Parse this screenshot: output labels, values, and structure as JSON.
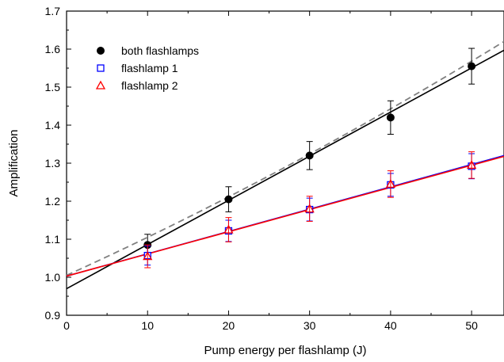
{
  "chart_data": {
    "type": "scatter",
    "xlabel": "Pump energy per flashlamp (J)",
    "ylabel": "Amplification",
    "xlim": [
      0,
      54
    ],
    "ylim": [
      0.9,
      1.7
    ],
    "x_ticks": [
      0,
      10,
      20,
      30,
      40,
      50
    ],
    "y_ticks": [
      0.9,
      1.0,
      1.1,
      1.2,
      1.3,
      1.4,
      1.5,
      1.6,
      1.7
    ],
    "x_tick_labels": [
      "0",
      "10",
      "20",
      "30",
      "40",
      "50"
    ],
    "y_tick_labels": [
      "0.9",
      "1.0",
      "1.1",
      "1.2",
      "1.3",
      "1.4",
      "1.5",
      "1.6",
      "1.7"
    ],
    "legend_position": "top-left",
    "series": [
      {
        "name": "both flashlamps",
        "marker": "filled-circle",
        "color": "#000000",
        "points": [
          {
            "x": 10,
            "y": 1.085,
            "err": 0.028
          },
          {
            "x": 20,
            "y": 1.205,
            "err": 0.033
          },
          {
            "x": 30,
            "y": 1.32,
            "err": 0.037
          },
          {
            "x": 40,
            "y": 1.42,
            "err": 0.044
          },
          {
            "x": 50,
            "y": 1.555,
            "err": 0.047
          }
        ]
      },
      {
        "name": "flashlamp 1",
        "marker": "open-square",
        "color": "#0000ff",
        "points": [
          {
            "x": 10,
            "y": 1.057,
            "err": 0.025
          },
          {
            "x": 20,
            "y": 1.122,
            "err": 0.028
          },
          {
            "x": 30,
            "y": 1.178,
            "err": 0.03
          },
          {
            "x": 40,
            "y": 1.243,
            "err": 0.03
          },
          {
            "x": 50,
            "y": 1.292,
            "err": 0.033
          }
        ]
      },
      {
        "name": "flashlamp 2",
        "marker": "open-triangle",
        "color": "#ff0000",
        "points": [
          {
            "x": 10,
            "y": 1.055,
            "err": 0.03
          },
          {
            "x": 20,
            "y": 1.125,
            "err": 0.032
          },
          {
            "x": 30,
            "y": 1.18,
            "err": 0.033
          },
          {
            "x": 40,
            "y": 1.245,
            "err": 0.035
          },
          {
            "x": 50,
            "y": 1.295,
            "err": 0.035
          }
        ]
      }
    ],
    "fits": [
      {
        "style": "solid",
        "color": "#000000",
        "from": [
          0,
          0.97
        ],
        "to": [
          54,
          1.597
        ]
      },
      {
        "style": "dashed",
        "color": "#808080",
        "from": [
          0,
          1.005
        ],
        "to": [
          54,
          1.62
        ],
        "curved": true
      },
      {
        "style": "solid",
        "color": "#0000ff",
        "from": [
          0,
          1.003
        ],
        "to": [
          54,
          1.32
        ]
      },
      {
        "style": "solid",
        "color": "#ff0000",
        "from": [
          0,
          1.003
        ],
        "to": [
          54,
          1.318
        ]
      }
    ]
  }
}
